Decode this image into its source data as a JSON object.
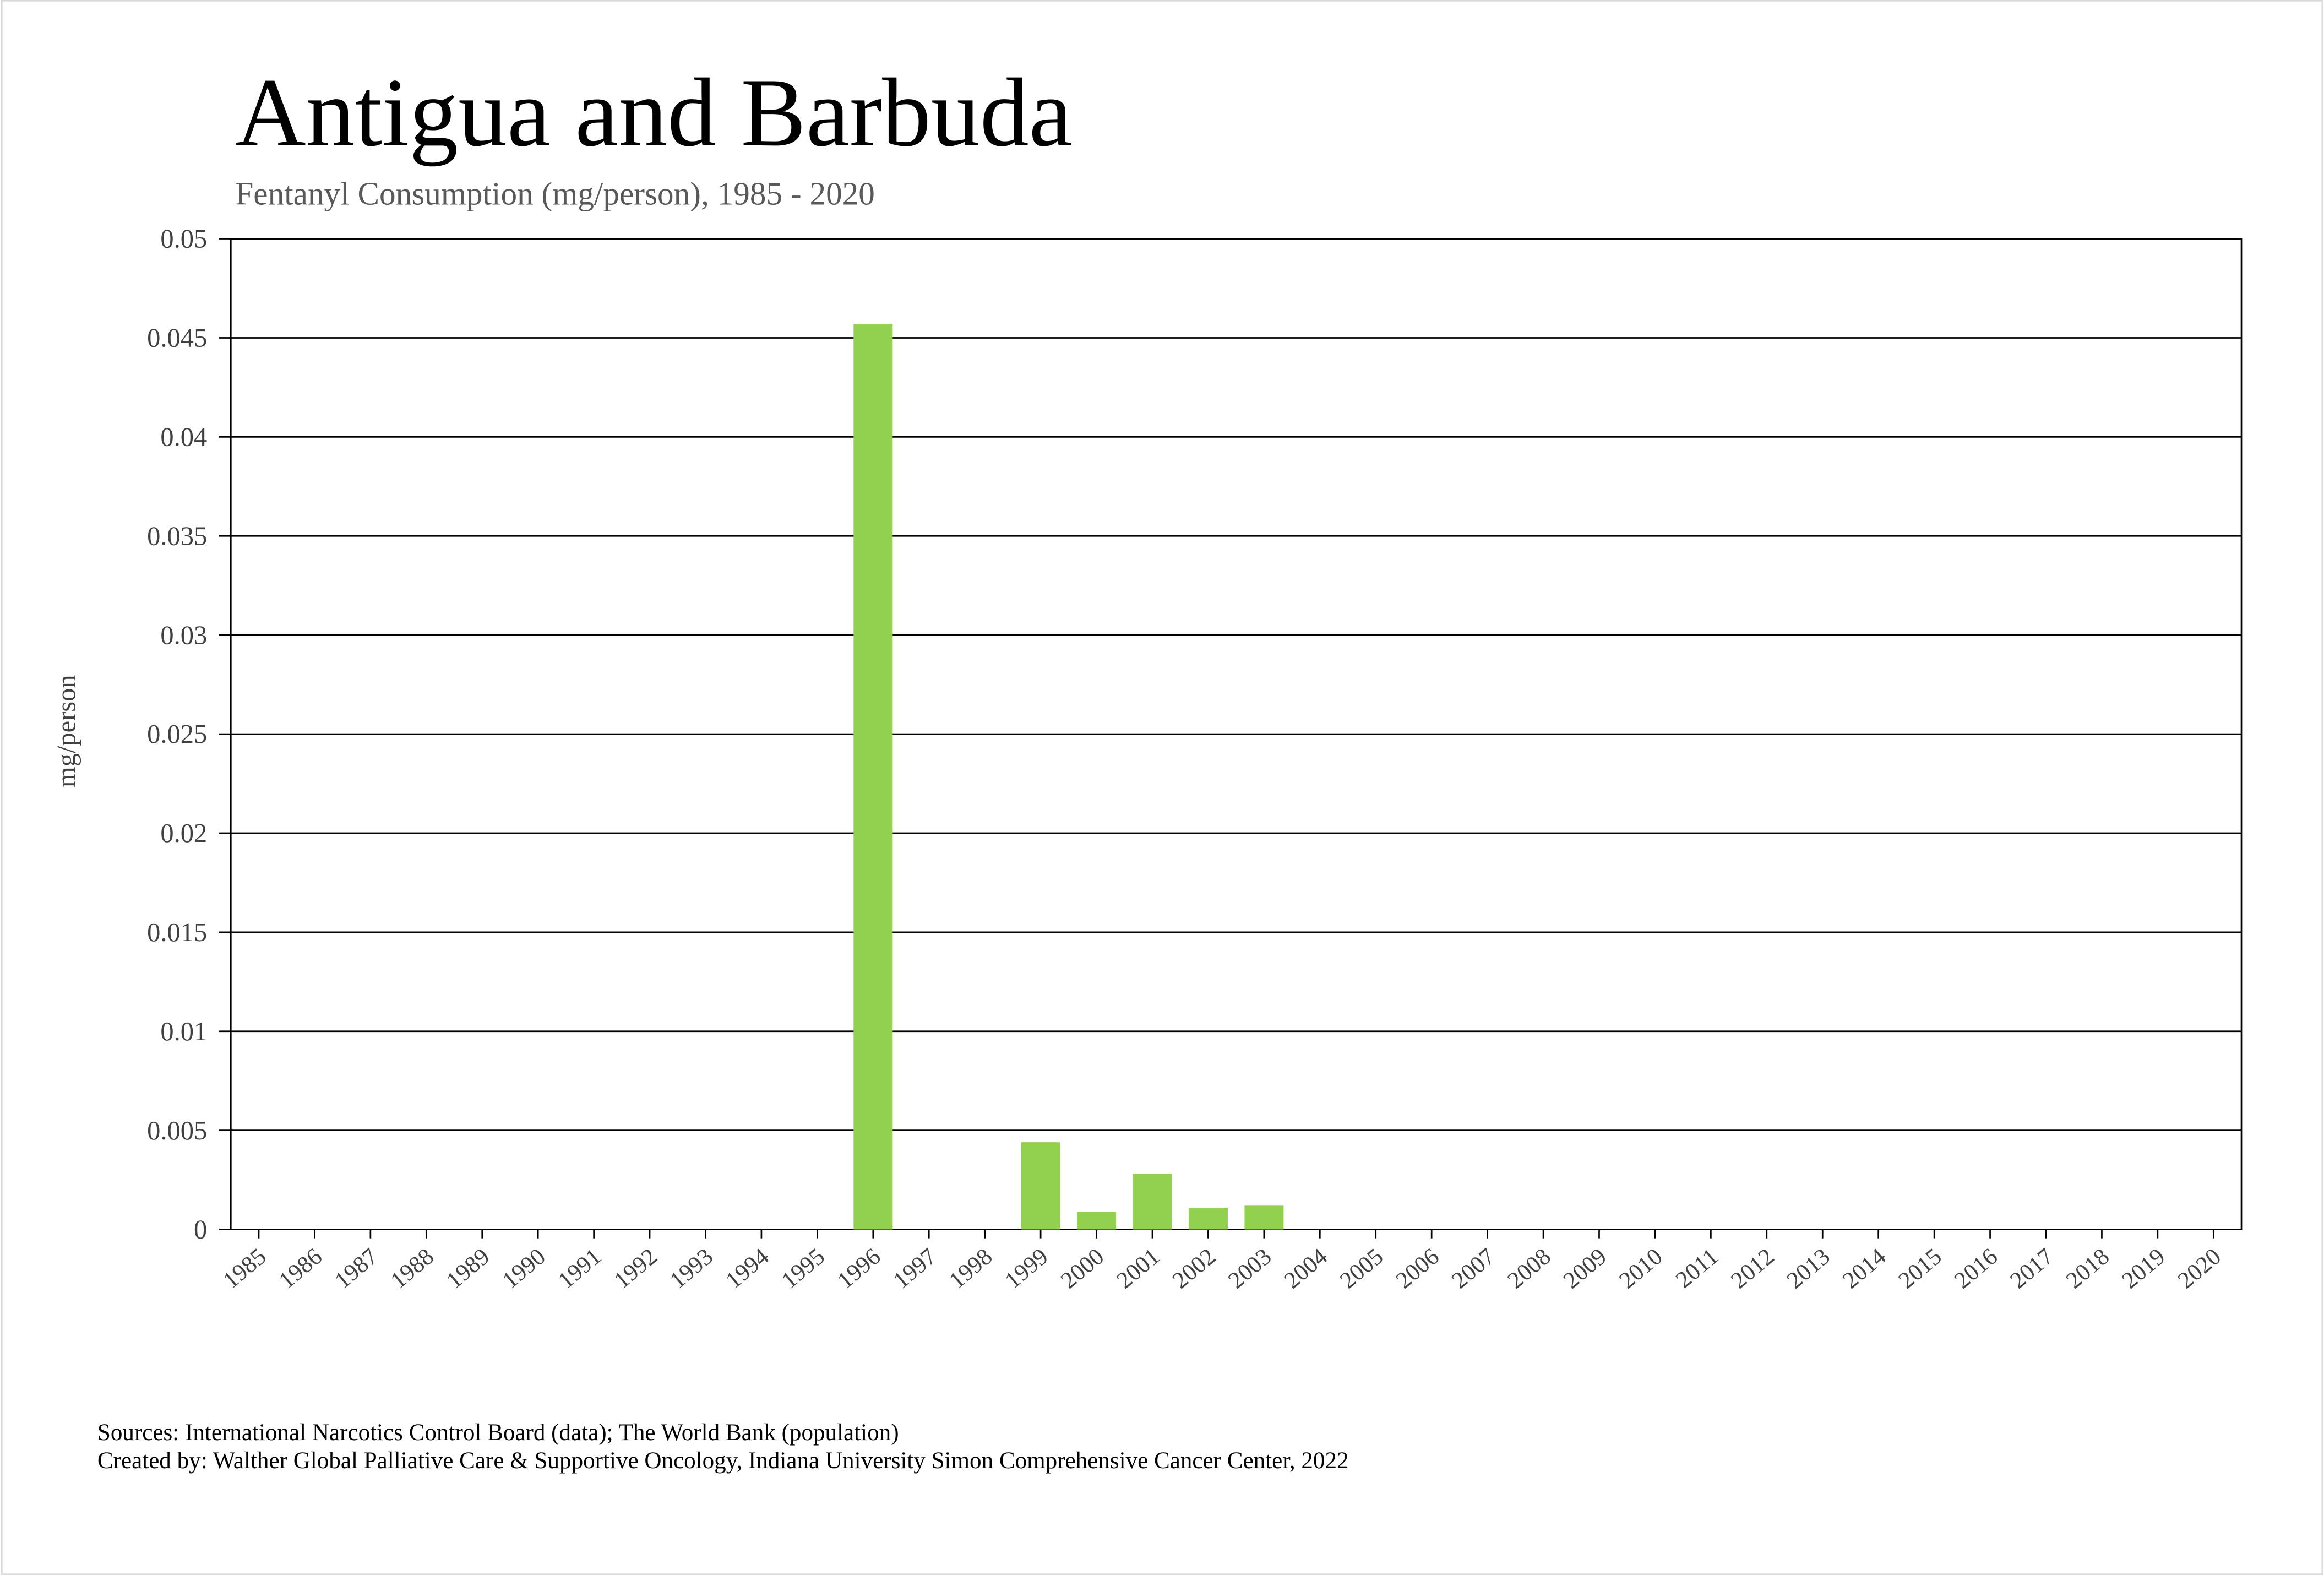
{
  "chart_data": {
    "type": "bar",
    "title": "Antigua and Barbuda",
    "subtitle": "Fentanyl Consumption (mg/person), 1985 - 2020",
    "y_label": "mg/person",
    "sources": "Sources: International Narcotics Control Board (data); The World Bank (population)",
    "created_by": "Created by: Walther Global Palliative Care & Supportive Oncology, Indiana University Simon Comprehensive Cancer Center, 2022",
    "categories": [
      "1985",
      "1986",
      "1987",
      "1988",
      "1989",
      "1990",
      "1991",
      "1992",
      "1993",
      "1994",
      "1995",
      "1996",
      "1997",
      "1998",
      "1999",
      "2000",
      "2001",
      "2002",
      "2003",
      "2004",
      "2005",
      "2006",
      "2007",
      "2008",
      "2009",
      "2010",
      "2011",
      "2012",
      "2013",
      "2014",
      "2015",
      "2016",
      "2017",
      "2018",
      "2019",
      "2020"
    ],
    "values": [
      0,
      0,
      0,
      0,
      0,
      0,
      0,
      0,
      0,
      0,
      0,
      0.0457,
      0,
      0,
      0.0044,
      0.0009,
      0.0028,
      0.0011,
      0.0012,
      0,
      0,
      0,
      0,
      0,
      0,
      0,
      0,
      0,
      0,
      0,
      0,
      0,
      0,
      0,
      0,
      0
    ],
    "color": "#92d050",
    "ylim": [
      0,
      0.05
    ],
    "yticks": [
      0,
      0.005,
      0.01,
      0.015,
      0.02,
      0.025,
      0.03,
      0.035,
      0.04,
      0.045,
      0.05
    ],
    "grid": true
  }
}
